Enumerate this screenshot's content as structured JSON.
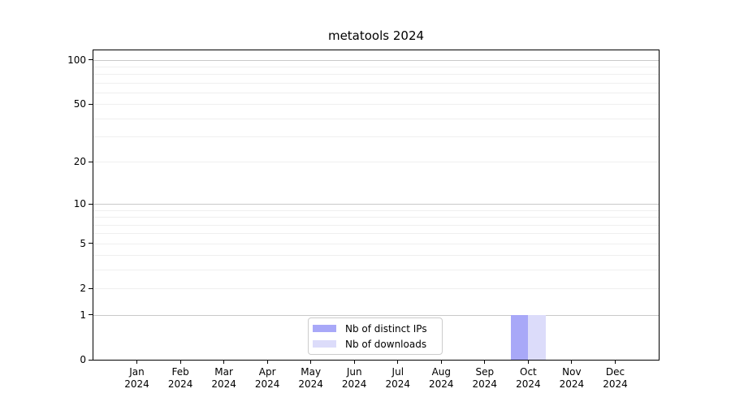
{
  "chart_data": {
    "type": "bar",
    "title": "metatools 2024",
    "xlabel": "",
    "ylabel": "",
    "grid": true,
    "y_axis": {
      "scale": "log1p",
      "ticks": [
        0,
        1,
        2,
        5,
        10,
        20,
        50,
        100
      ],
      "max": 116,
      "grid_values_minor": [
        2,
        3,
        4,
        5,
        6,
        7,
        8,
        9,
        20,
        30,
        40,
        50,
        60,
        70,
        80,
        90
      ],
      "grid_values_major": [
        1,
        10,
        100
      ]
    },
    "x_categories": [
      {
        "month": "Jan",
        "year": "2024"
      },
      {
        "month": "Feb",
        "year": "2024"
      },
      {
        "month": "Mar",
        "year": "2024"
      },
      {
        "month": "Apr",
        "year": "2024"
      },
      {
        "month": "May",
        "year": "2024"
      },
      {
        "month": "Jun",
        "year": "2024"
      },
      {
        "month": "Jul",
        "year": "2024"
      },
      {
        "month": "Aug",
        "year": "2024"
      },
      {
        "month": "Sep",
        "year": "2024"
      },
      {
        "month": "Oct",
        "year": "2024"
      },
      {
        "month": "Nov",
        "year": "2024"
      },
      {
        "month": "Dec",
        "year": "2024"
      }
    ],
    "series": [
      {
        "name": "Nb of distinct IPs",
        "color": "#a8a8f8",
        "values": [
          0,
          0,
          0,
          0,
          0,
          0,
          0,
          0,
          0,
          1,
          0,
          0
        ]
      },
      {
        "name": "Nb of downloads",
        "color": "#dcdcfa",
        "values": [
          0,
          0,
          0,
          0,
          0,
          0,
          0,
          0,
          0,
          1,
          0,
          0
        ]
      }
    ],
    "legend": {
      "position": "lower-center-inside",
      "border_color": "#cccccc"
    },
    "colors": {
      "spine": "#000000",
      "grid_major": "#c9c9c9",
      "grid_minor": "#efefef",
      "background": "#ffffff"
    }
  }
}
